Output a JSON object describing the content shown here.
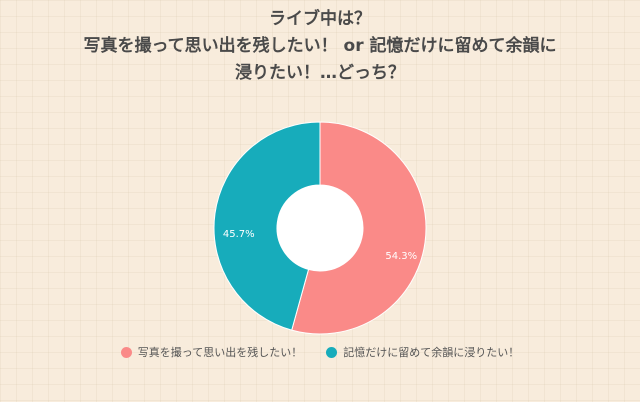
{
  "chart_data": {
    "type": "pie",
    "title_lines": [
      "ライブ中は？",
      "写真を撮って思い出を残したい！ or 記憶だけに留めて余韻に",
      "浸りたい！…どっち？"
    ],
    "categories": [
      "写真を撮って思い出を残したい！",
      "記憶だけに留めて余韻に浸りたい！"
    ],
    "values": [
      54.3,
      45.7
    ],
    "value_labels": [
      "54.3%",
      "45.7%"
    ],
    "colors": [
      "#fa8a88",
      "#17acbb"
    ],
    "donut": true,
    "legend_position": "bottom"
  }
}
